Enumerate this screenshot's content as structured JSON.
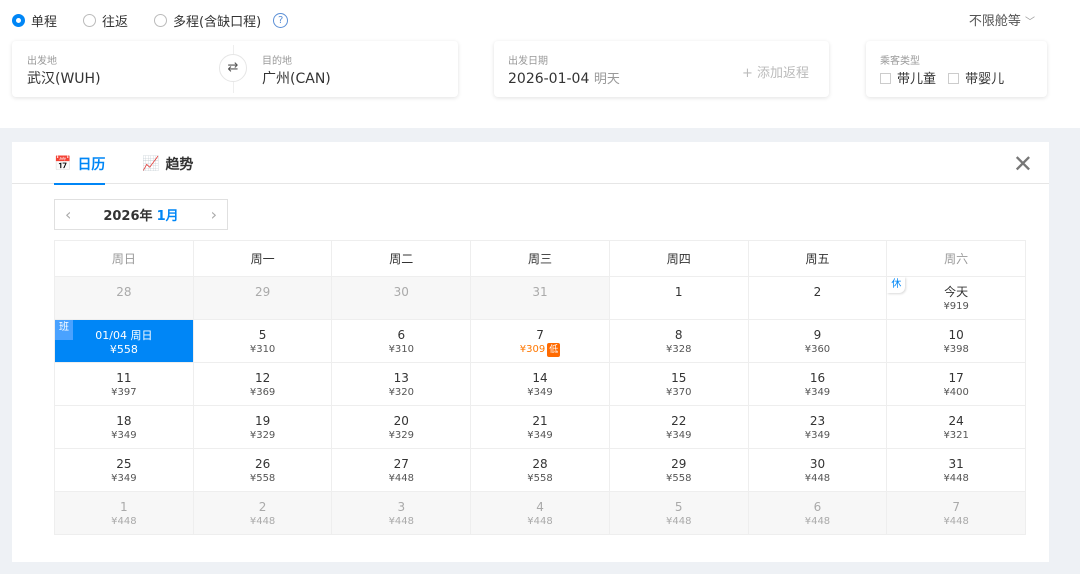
{
  "trip_types": [
    {
      "label": "单程",
      "selected": true
    },
    {
      "label": "往返",
      "selected": false
    },
    {
      "label": "多程(含缺口程)",
      "selected": false
    }
  ],
  "help_icon": "?",
  "cabin": "不限舱等",
  "from": {
    "label": "出发地",
    "value": "武汉(WUH)"
  },
  "to": {
    "label": "目的地",
    "value": "广州(CAN)"
  },
  "swap_icon": "⇄",
  "depart": {
    "label": "出发日期",
    "value": "2026-01-04",
    "day_hint": "明天",
    "add_return": "+ 添加返程"
  },
  "passengers": {
    "label": "乘客类型",
    "options": [
      "带儿童",
      "带婴儿"
    ]
  },
  "tabs": [
    {
      "label": "日历",
      "active": true
    },
    {
      "label": "趋势",
      "active": false
    }
  ],
  "month": {
    "year": "2026年",
    "month": "1月"
  },
  "weekdays": [
    "周日",
    "周一",
    "周二",
    "周三",
    "周四",
    "周五",
    "周六"
  ],
  "accent_color": "#0086f6",
  "low_color": "#ff6a00",
  "calendar": [
    [
      {
        "d": "28",
        "dim": true
      },
      {
        "d": "29",
        "dim": true
      },
      {
        "d": "30",
        "dim": true
      },
      {
        "d": "31",
        "dim": true
      },
      {
        "d": "1"
      },
      {
        "d": "2"
      },
      {
        "d": "今天",
        "p": "¥919",
        "badge": "休"
      }
    ],
    [
      {
        "d": "01/04 周日",
        "p": "¥558",
        "sel": true,
        "badge": "班"
      },
      {
        "d": "5",
        "p": "¥310"
      },
      {
        "d": "6",
        "p": "¥310"
      },
      {
        "d": "7",
        "p": "¥309",
        "low": "低"
      },
      {
        "d": "8",
        "p": "¥328"
      },
      {
        "d": "9",
        "p": "¥360"
      },
      {
        "d": "10",
        "p": "¥398"
      }
    ],
    [
      {
        "d": "11",
        "p": "¥397"
      },
      {
        "d": "12",
        "p": "¥369"
      },
      {
        "d": "13",
        "p": "¥320"
      },
      {
        "d": "14",
        "p": "¥349"
      },
      {
        "d": "15",
        "p": "¥370"
      },
      {
        "d": "16",
        "p": "¥349"
      },
      {
        "d": "17",
        "p": "¥400"
      }
    ],
    [
      {
        "d": "18",
        "p": "¥349"
      },
      {
        "d": "19",
        "p": "¥329"
      },
      {
        "d": "20",
        "p": "¥329"
      },
      {
        "d": "21",
        "p": "¥349"
      },
      {
        "d": "22",
        "p": "¥349"
      },
      {
        "d": "23",
        "p": "¥349"
      },
      {
        "d": "24",
        "p": "¥321"
      }
    ],
    [
      {
        "d": "25",
        "p": "¥349"
      },
      {
        "d": "26",
        "p": "¥558"
      },
      {
        "d": "27",
        "p": "¥448"
      },
      {
        "d": "28",
        "p": "¥558"
      },
      {
        "d": "29",
        "p": "¥558"
      },
      {
        "d": "30",
        "p": "¥448"
      },
      {
        "d": "31",
        "p": "¥448"
      }
    ],
    [
      {
        "d": "1",
        "p": "¥448",
        "dim": true
      },
      {
        "d": "2",
        "p": "¥448",
        "dim": true
      },
      {
        "d": "3",
        "p": "¥448",
        "dim": true
      },
      {
        "d": "4",
        "p": "¥448",
        "dim": true
      },
      {
        "d": "5",
        "p": "¥448",
        "dim": true
      },
      {
        "d": "6",
        "p": "¥448",
        "dim": true
      },
      {
        "d": "7",
        "p": "¥448",
        "dim": true
      }
    ]
  ]
}
